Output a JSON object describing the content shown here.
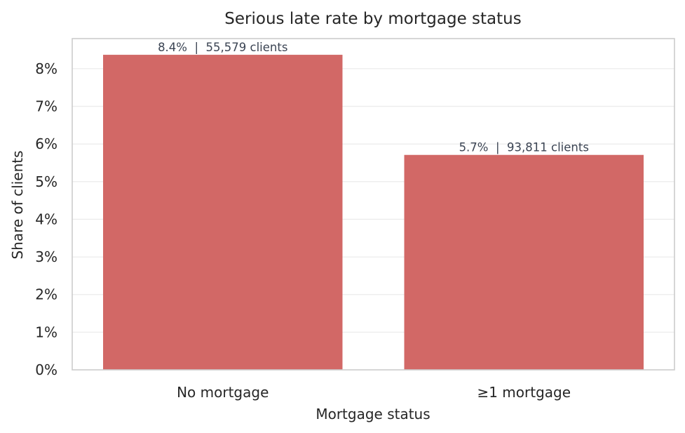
{
  "chart_data": {
    "type": "bar",
    "title": "Serious late rate by mortgage status",
    "xlabel": "Mortgage status",
    "ylabel": "Share of clients",
    "categories": [
      "No mortgage",
      "≥1 mortgage"
    ],
    "values": [
      8.37,
      5.71
    ],
    "value_unit": "%",
    "data_labels": [
      "8.4%  |  55,579 clients",
      "5.7%  |  93,811 clients"
    ],
    "ylim": [
      0,
      8.8
    ],
    "yticks": [
      0,
      1,
      2,
      3,
      4,
      5,
      6,
      7,
      8
    ],
    "ytick_labels": [
      "0%",
      "1%",
      "2%",
      "3%",
      "4%",
      "5%",
      "6%",
      "7%",
      "8%"
    ],
    "grid": true,
    "bar_color": "#d26866",
    "grid_color": "#ececec",
    "frame_color": "#cccccc"
  }
}
